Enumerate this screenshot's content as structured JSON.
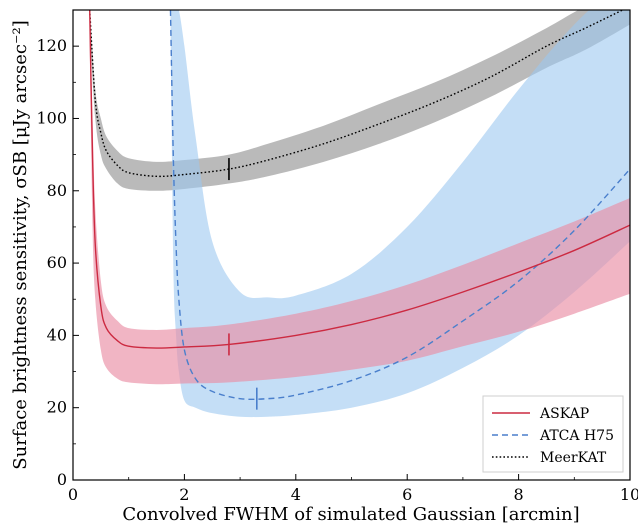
{
  "chart_data": {
    "type": "line",
    "xlabel": "Convolved FWHM of simulated Gaussian [arcmin]",
    "ylabel": "Surface brightness sensitivity, σSB [μJy arcsec⁻²]",
    "xlim": [
      0,
      10
    ],
    "ylim": [
      0,
      130
    ],
    "x_ticks": [
      0,
      2,
      4,
      6,
      8,
      10
    ],
    "y_ticks": [
      0,
      20,
      40,
      60,
      80,
      100,
      120
    ],
    "grid": false,
    "legend_position": "bottom-right",
    "series": [
      {
        "name": "MeerKAT",
        "color": "#000000",
        "line_style": "dotted",
        "band_color": "#8c8c8c",
        "band_opacity": 0.6,
        "x": [
          0.3,
          0.4,
          0.5,
          0.6,
          0.8,
          1.0,
          1.5,
          2.0,
          2.8,
          3.5,
          4.5,
          5.5,
          6.5,
          7.5,
          8.5,
          9.2,
          10.0
        ],
        "values": [
          130,
          105,
          96,
          91,
          87,
          85,
          84,
          84.5,
          86,
          88.5,
          93,
          98.5,
          104.5,
          111.5,
          120,
          125,
          131
        ],
        "band_lower": [
          125,
          100,
          90,
          86,
          82,
          80.5,
          80,
          80.5,
          82,
          84,
          88,
          93,
          99,
          106,
          114,
          119,
          126
        ],
        "band_upper": [
          131,
          108,
          100,
          95,
          91,
          89,
          88,
          88.5,
          90,
          93,
          98,
          104,
          110,
          117,
          125,
          131,
          136
        ],
        "marker_x": 2.8
      },
      {
        "name": "ATCA H75",
        "color": "#4a7fcc",
        "line_style": "dashed",
        "band_color": "#9dc8f0",
        "band_opacity": 0.6,
        "x": [
          1.75,
          1.8,
          1.85,
          1.9,
          2.0,
          2.2,
          2.5,
          3.0,
          3.5,
          4.0,
          5.0,
          6.0,
          7.0,
          8.0,
          9.0,
          10.0
        ],
        "values": [
          130,
          90,
          65,
          50,
          36,
          28,
          24.5,
          22.5,
          22.5,
          23.5,
          27.5,
          34,
          44,
          55,
          69,
          86
        ],
        "band_lower": [
          130,
          60,
          40,
          30,
          22,
          20,
          18.5,
          17.5,
          17.5,
          18,
          20,
          24,
          31,
          40,
          52,
          66
        ],
        "band_upper": [
          130,
          130,
          130,
          130,
          120,
          95,
          66,
          52,
          50.5,
          51,
          57,
          70,
          88,
          108,
          126,
          140
        ],
        "marker_x": 3.3
      },
      {
        "name": "ASKAP",
        "color": "#cc2a41",
        "line_style": "solid",
        "band_color": "#ea8ea4",
        "band_opacity": 0.65,
        "x": [
          0.3,
          0.35,
          0.4,
          0.5,
          0.6,
          0.8,
          1.0,
          1.5,
          2.0,
          2.8,
          4.0,
          5.0,
          6.0,
          7.0,
          8.0,
          9.0,
          10.0
        ],
        "values": [
          130,
          90,
          65,
          48,
          42,
          38.5,
          37,
          36.5,
          36.8,
          37.5,
          40,
          43,
          47,
          52,
          57.5,
          63.5,
          70.5
        ],
        "band_lower": [
          120,
          70,
          50,
          36,
          31,
          28,
          27,
          26.5,
          26.7,
          27,
          28.5,
          30.5,
          33,
          37,
          41,
          46,
          51.5
        ],
        "band_upper": [
          130,
          100,
          75,
          55,
          48,
          44,
          42,
          41.5,
          42,
          43,
          46,
          49.5,
          54,
          59.5,
          65.5,
          71.5,
          78
        ],
        "marker_x": 2.8
      }
    ]
  },
  "legend": {
    "items": [
      {
        "label": "ASKAP",
        "color": "#cc2a41",
        "dash": ""
      },
      {
        "label": "ATCA H75",
        "color": "#4a7fcc",
        "dash": "6,4"
      },
      {
        "label": "MeerKAT",
        "color": "#000000",
        "dash": "1.6,2.2"
      }
    ]
  }
}
